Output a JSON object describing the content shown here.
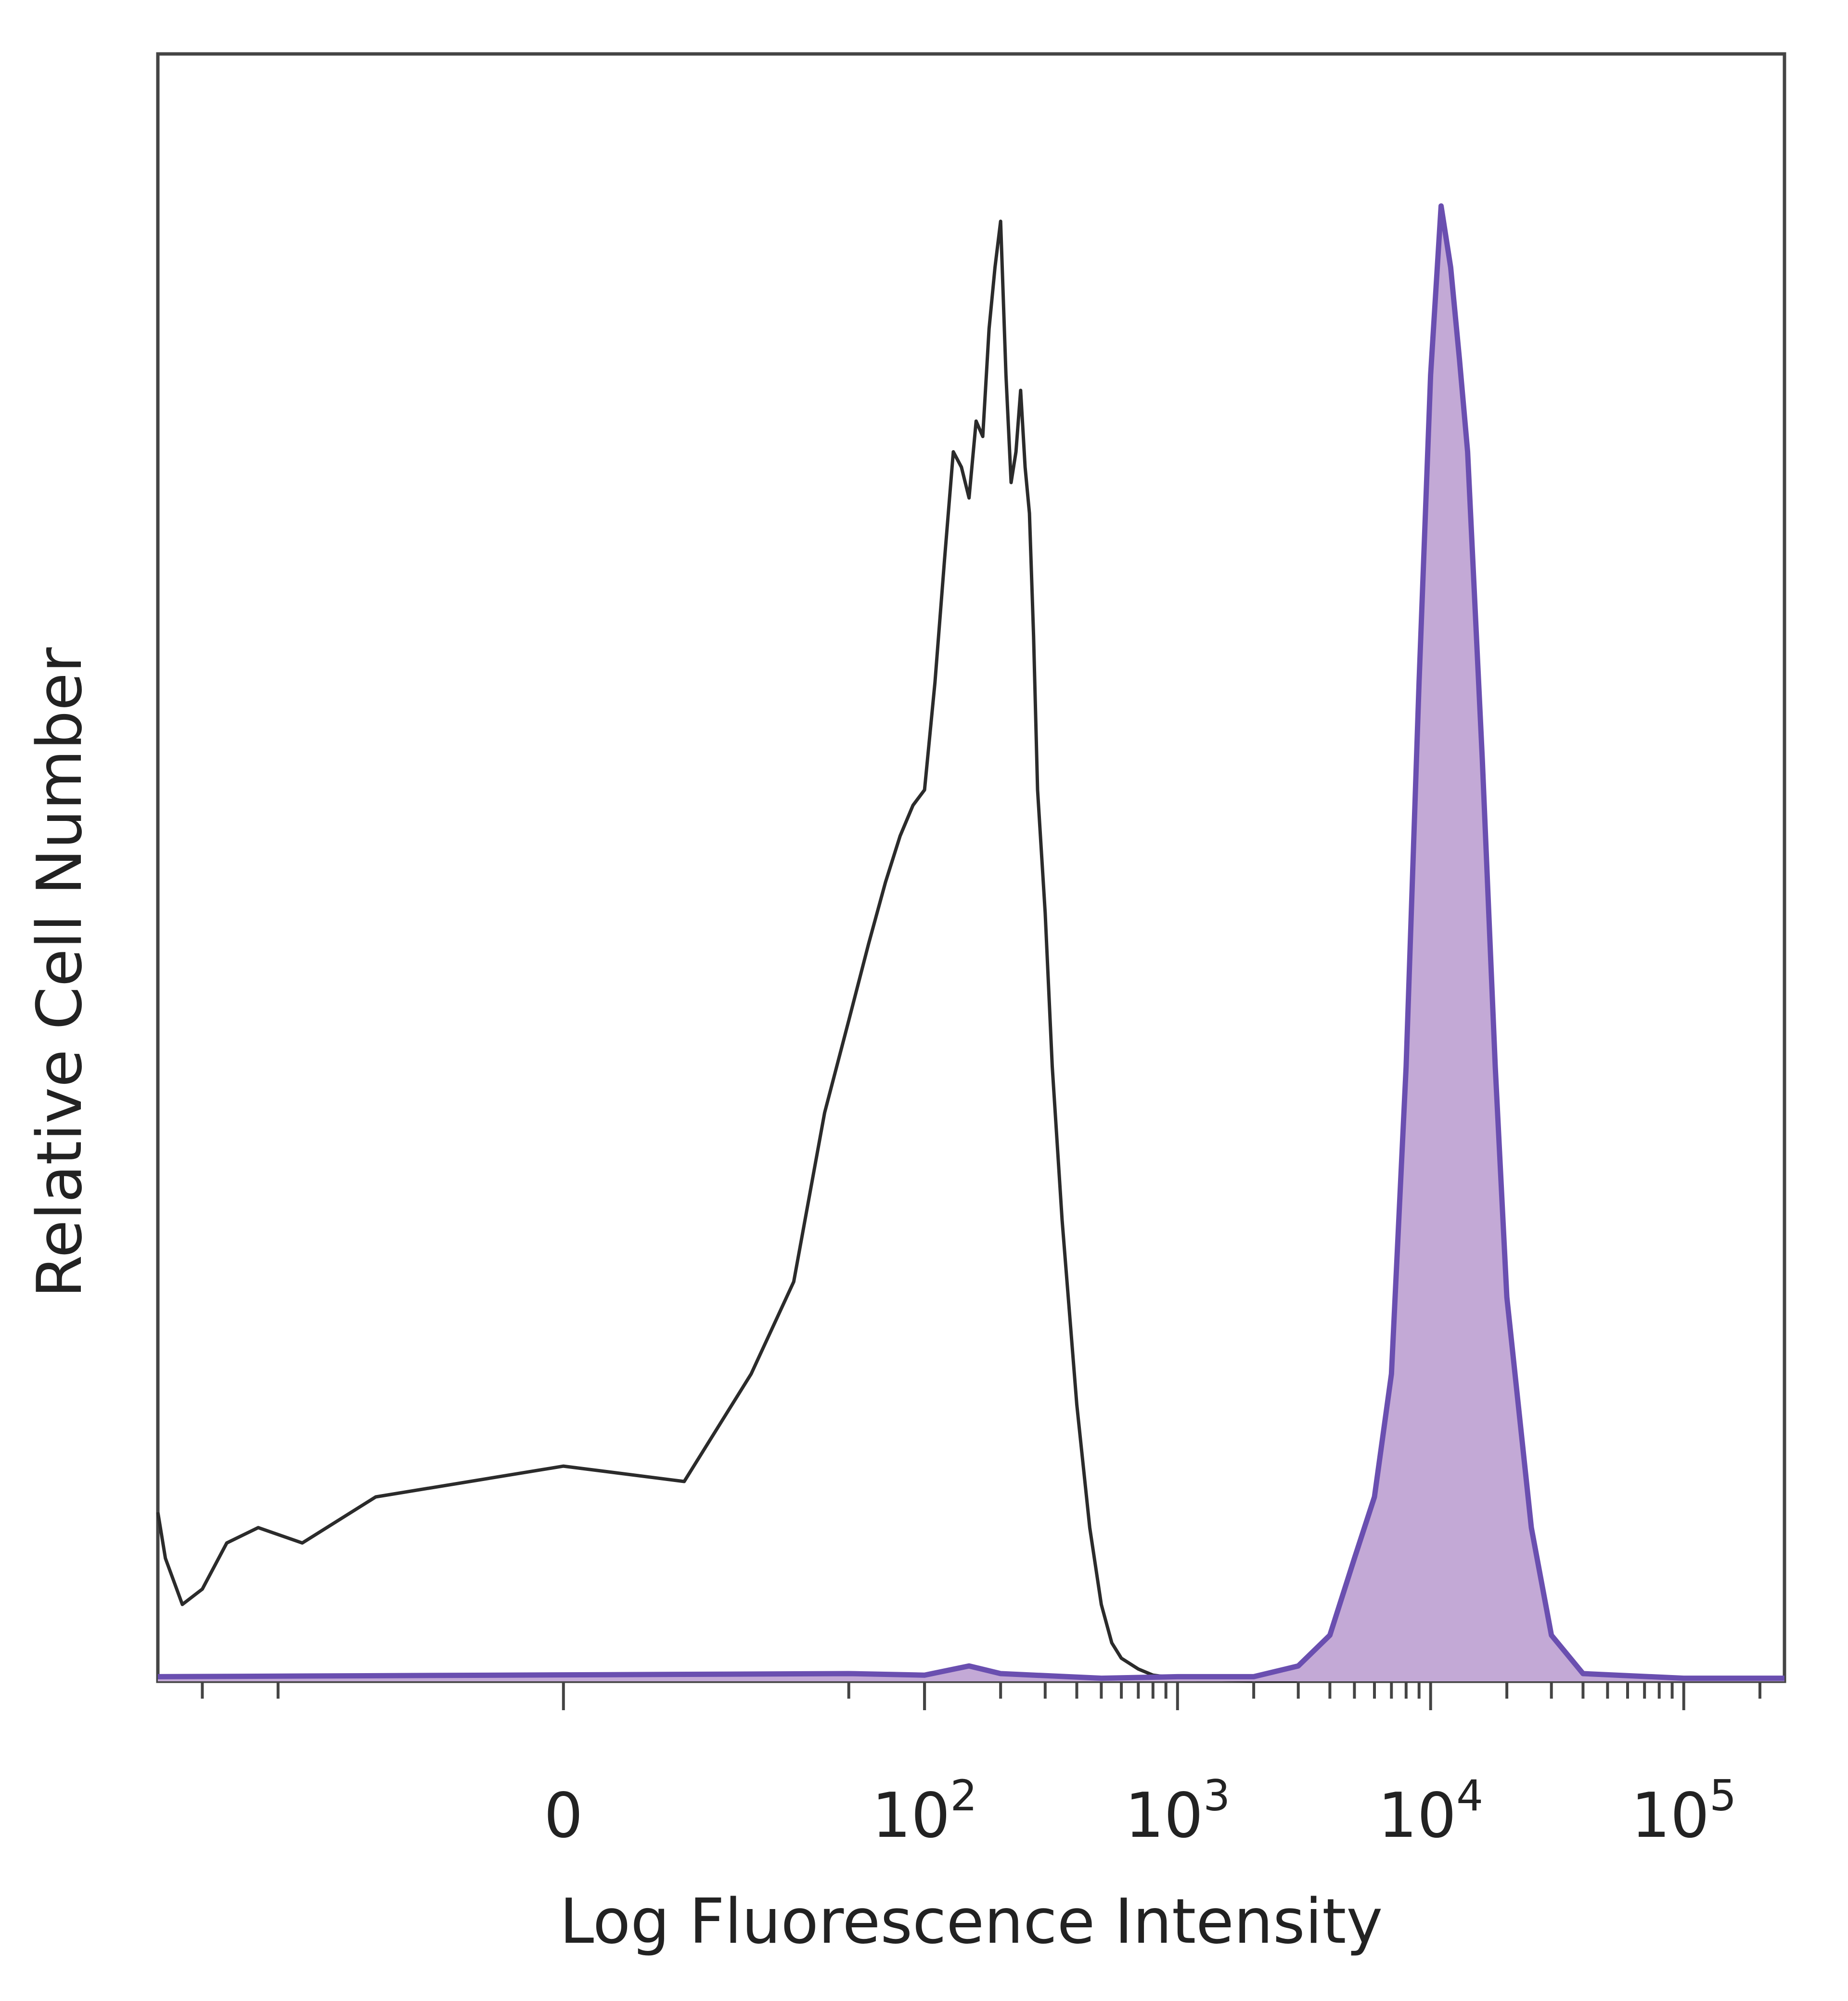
{
  "chart_data": {
    "type": "area",
    "xlabel": "Log Fluorescence Intensity",
    "ylabel": "Relative Cell Number",
    "x_scale": "biexponential",
    "x_ticks": [
      {
        "value": 0,
        "base": "0",
        "exp": ""
      },
      {
        "value": 100,
        "base": "10",
        "exp": "2"
      },
      {
        "value": 1000,
        "base": "10",
        "exp": "3"
      },
      {
        "value": 10000,
        "base": "10",
        "exp": "4"
      },
      {
        "value": 100000,
        "base": "10",
        "exp": "5"
      }
    ],
    "x_range": [
      -150,
      250000
    ],
    "y_range": [
      0,
      100
    ],
    "grid": false,
    "series": [
      {
        "style": "outline",
        "color": "#2b2b2b",
        "x": [
          -150,
          -140,
          -120,
          -100,
          -80,
          -60,
          -40,
          -20,
          0,
          10,
          20,
          30,
          40,
          50,
          60,
          70,
          80,
          90,
          100,
          110,
          120,
          130,
          140,
          150,
          160,
          170,
          180,
          190,
          200,
          210,
          220,
          230,
          240,
          250,
          260,
          270,
          280,
          300,
          320,
          350,
          400,
          450,
          500,
          550,
          600,
          700,
          800,
          1000,
          1200,
          1500,
          2000,
          3000
        ],
        "y": [
          11,
          8,
          5,
          6,
          9,
          10,
          9,
          12,
          14,
          13,
          20,
          26,
          37,
          43,
          48,
          52,
          55,
          57,
          58,
          65,
          73,
          80,
          79,
          77,
          82,
          81,
          88,
          92,
          95,
          85,
          78,
          80,
          84,
          79,
          76,
          68,
          58,
          50,
          40,
          30,
          18,
          10,
          5,
          2.5,
          1.5,
          0.8,
          0.4,
          0.2,
          0.1,
          0.1,
          0,
          0
        ]
      },
      {
        "style": "filled",
        "color": "#6a4fb0",
        "fill": "#c3a9d6",
        "x": [
          -150,
          50,
          100,
          150,
          200,
          500,
          1000,
          2000,
          3000,
          4000,
          5000,
          6000,
          7000,
          8000,
          9000,
          10000,
          11000,
          12000,
          13000,
          14000,
          16000,
          18000,
          20000,
          25000,
          30000,
          40000,
          100000,
          250000
        ],
        "y": [
          0.3,
          0.5,
          0.4,
          1,
          0.5,
          0.2,
          0.3,
          0.3,
          1,
          3,
          8,
          12,
          20,
          40,
          65,
          85,
          96,
          92,
          86,
          80,
          60,
          40,
          25,
          10,
          3,
          0.5,
          0.2,
          0.2
        ]
      }
    ]
  }
}
